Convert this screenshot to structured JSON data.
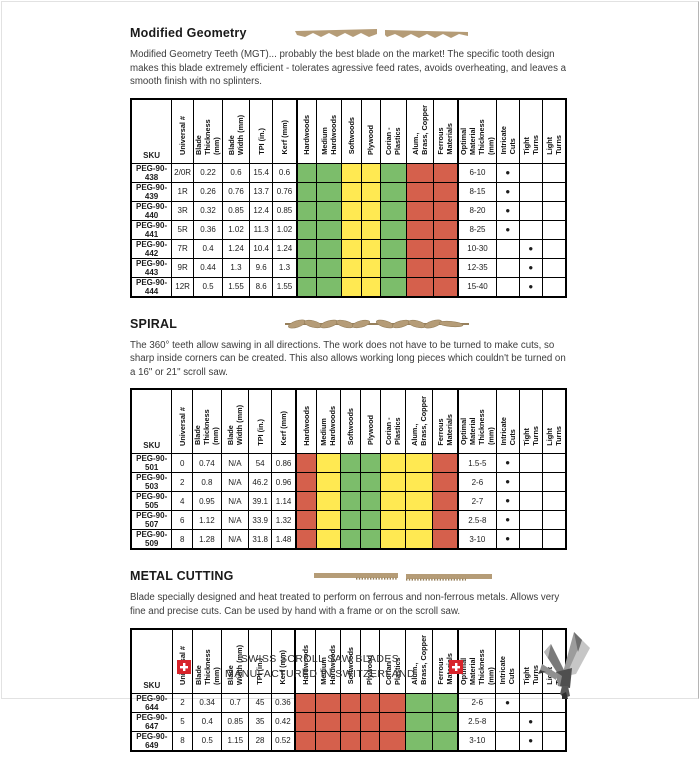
{
  "colors": {
    "suitable": "#7cbd6b",
    "moderate": "#ffe952",
    "unsuitable": "#d5604c",
    "blade_tan": "#b59c77",
    "blade_tan_dark": "#97805c",
    "swiss_red": "#d8232a"
  },
  "columns": {
    "sku": "SKU",
    "specs": [
      "Universal #",
      "Blade\nThickness (mm)",
      "Blade\nWidth (mm)",
      "TPI (in.)",
      "Kerf (mm)"
    ],
    "materials": [
      "Hardwoods",
      "Medium\nHardwoods",
      "Softwoods",
      "Plywood",
      "Corian - Plastics",
      "Alum.,\nBrass, Copper",
      "Ferrous\nMaterials"
    ],
    "optimal": "Optimal\nMaterial\nThickness (mm)",
    "cuts": [
      "Intricate\nCuts",
      "Tight\nTurns",
      "Light\nTurns"
    ]
  },
  "sections": [
    {
      "title": "Modified Geometry",
      "description": "Modified Geometry Teeth (MGT)... probably the best blade on the market! The specific tooth design makes this blade extremely efficient - tolerates agressive feed rates, avoids overheating, and leaves a smooth finish with no splinters.",
      "material_ratings": [
        "suitable",
        "suitable",
        "moderate",
        "moderate",
        "suitable",
        "unsuitable",
        "unsuitable"
      ],
      "rows": [
        {
          "sku": "PEG-90-438",
          "universal": "2/0R",
          "thickness": "0.22",
          "width": "0.6",
          "tpi": "15.4",
          "kerf": "0.6",
          "optimal": "6-10",
          "cuts": [
            true,
            false,
            false
          ]
        },
        {
          "sku": "PEG-90-439",
          "universal": "1R",
          "thickness": "0.26",
          "width": "0.76",
          "tpi": "13.7",
          "kerf": "0.76",
          "optimal": "8-15",
          "cuts": [
            true,
            false,
            false
          ]
        },
        {
          "sku": "PEG-90-440",
          "universal": "3R",
          "thickness": "0.32",
          "width": "0.85",
          "tpi": "12.4",
          "kerf": "0.85",
          "optimal": "8-20",
          "cuts": [
            true,
            false,
            false
          ]
        },
        {
          "sku": "PEG-90-441",
          "universal": "5R",
          "thickness": "0.36",
          "width": "1.02",
          "tpi": "11.3",
          "kerf": "1.02",
          "optimal": "8-25",
          "cuts": [
            true,
            false,
            false
          ]
        },
        {
          "sku": "PEG-90-442",
          "universal": "7R",
          "thickness": "0.4",
          "width": "1.24",
          "tpi": "10.4",
          "kerf": "1.24",
          "optimal": "10-30",
          "cuts": [
            false,
            true,
            false
          ]
        },
        {
          "sku": "PEG-90-443",
          "universal": "9R",
          "thickness": "0.44",
          "width": "1.3",
          "tpi": "9.6",
          "kerf": "1.3",
          "optimal": "12-35",
          "cuts": [
            false,
            true,
            false
          ]
        },
        {
          "sku": "PEG-90-444",
          "universal": "12R",
          "thickness": "0.5",
          "width": "1.55",
          "tpi": "8.6",
          "kerf": "1.55",
          "optimal": "15-40",
          "cuts": [
            false,
            true,
            false
          ]
        }
      ]
    },
    {
      "title": "SPIRAL",
      "description": "The 360° teeth allow sawing in all directions. The work does not have to be turned to make cuts, so sharp inside corners can be created. This also allows working long pieces which couldn't be turned on a 16\" or 21\" scroll saw.",
      "material_ratings": [
        "unsuitable",
        "moderate",
        "suitable",
        "suitable",
        "moderate",
        "moderate",
        "unsuitable"
      ],
      "rows": [
        {
          "sku": "PEG-90-501",
          "universal": "0",
          "thickness": "0.74",
          "width": "N/A",
          "tpi": "54",
          "kerf": "0.86",
          "optimal": "1.5-5",
          "cuts": [
            true,
            false,
            false
          ]
        },
        {
          "sku": "PEG-90-503",
          "universal": "2",
          "thickness": "0.8",
          "width": "N/A",
          "tpi": "46.2",
          "kerf": "0.96",
          "optimal": "2-6",
          "cuts": [
            true,
            false,
            false
          ]
        },
        {
          "sku": "PEG-90-505",
          "universal": "4",
          "thickness": "0.95",
          "width": "N/A",
          "tpi": "39.1",
          "kerf": "1.14",
          "optimal": "2-7",
          "cuts": [
            true,
            false,
            false
          ]
        },
        {
          "sku": "PEG-90-507",
          "universal": "6",
          "thickness": "1.12",
          "width": "N/A",
          "tpi": "33.9",
          "kerf": "1.32",
          "optimal": "2.5-8",
          "cuts": [
            true,
            false,
            false
          ]
        },
        {
          "sku": "PEG-90-509",
          "universal": "8",
          "thickness": "1.28",
          "width": "N/A",
          "tpi": "31.8",
          "kerf": "1.48",
          "optimal": "3-10",
          "cuts": [
            true,
            false,
            false
          ]
        }
      ]
    },
    {
      "title": "METAL CUTTING",
      "description": "Blade specially designed and heat treated to perform on ferrous and non-ferrous metals. Allows very fine and precise cuts. Can be used by hand with a frame or on the scroll saw.",
      "material_ratings": [
        "unsuitable",
        "unsuitable",
        "unsuitable",
        "unsuitable",
        "unsuitable",
        "suitable",
        "suitable"
      ],
      "rows": [
        {
          "sku": "PEG-90-644",
          "universal": "2",
          "thickness": "0.34",
          "width": "0.7",
          "tpi": "45",
          "kerf": "0.36",
          "optimal": "2-6",
          "cuts": [
            true,
            false,
            false
          ]
        },
        {
          "sku": "PEG-90-647",
          "universal": "5",
          "thickness": "0.4",
          "width": "0.85",
          "tpi": "35",
          "kerf": "0.42",
          "optimal": "2.5-8",
          "cuts": [
            false,
            true,
            false
          ]
        },
        {
          "sku": "PEG-90-649",
          "universal": "8",
          "thickness": "0.5",
          "width": "1.15",
          "tpi": "28",
          "kerf": "0.52",
          "optimal": "3-10",
          "cuts": [
            false,
            true,
            false
          ]
        }
      ]
    }
  ],
  "footer": {
    "line1": "SWISS SCROLL SAW BLADES",
    "line2": "MANUFACTURED IN SWITZERLAND"
  }
}
